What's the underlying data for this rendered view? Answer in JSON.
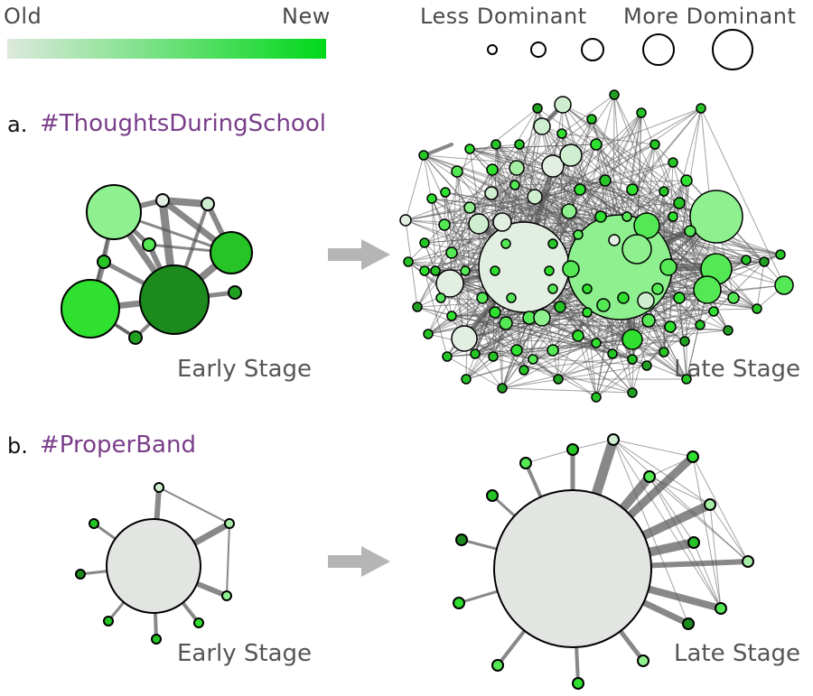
{
  "legend": {
    "age_scale": {
      "old_label": "Old",
      "new_label": "New",
      "old_color": "#dde9dd",
      "new_color": "#00d81a"
    },
    "dominance_scale": {
      "less_label": "Less Dominant",
      "more_label": "More Dominant",
      "sizes": [
        1,
        2,
        3,
        4,
        5
      ]
    }
  },
  "panels": [
    {
      "letter": "a.",
      "tag": "#ThoughtsDuringSchool",
      "early_label": "Early Stage",
      "late_label": "Late Stage"
    },
    {
      "letter": "b.",
      "tag": "#ProperBand",
      "early_label": "Early Stage",
      "late_label": "Late Stage"
    }
  ],
  "colors": {
    "edge": "#555555",
    "arrow": "#b5b5b5",
    "hub": "#e3e5e3",
    "node_palette": [
      "#e3eee3",
      "#cfeecf",
      "#a6eea6",
      "#8ef08e",
      "#55e855",
      "#2fe02f",
      "#26c426",
      "#22a022",
      "#1c8a1c"
    ]
  }
}
